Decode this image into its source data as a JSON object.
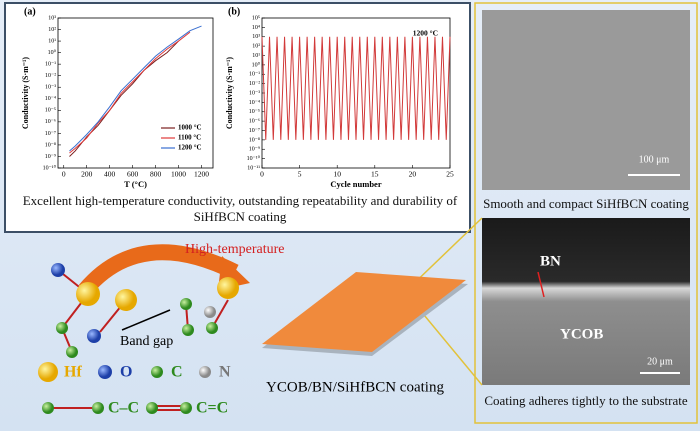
{
  "chart_data": [
    {
      "type": "line",
      "panel_label": "(a)",
      "xlabel": "T (°C)",
      "ylabel": "Conductivity (S·m⁻¹)",
      "log_y": true,
      "legend": "lower right",
      "xlim": [
        -50,
        1300
      ],
      "xticks": [
        0,
        200,
        400,
        600,
        800,
        1000,
        1200
      ],
      "ylim": [
        1e-10,
        1000.0
      ],
      "yticks": [
        {
          "value": 1e-10,
          "label": "10⁻¹⁰"
        },
        {
          "value": 1e-09,
          "label": "10⁻⁹"
        },
        {
          "value": 1e-08,
          "label": "10⁻⁸"
        },
        {
          "value": 1e-07,
          "label": "10⁻⁷"
        },
        {
          "value": 1e-06,
          "label": "10⁻⁶"
        },
        {
          "value": 1e-05,
          "label": "10⁻⁵"
        },
        {
          "value": 0.0001,
          "label": "10⁻⁴"
        },
        {
          "value": 0.001,
          "label": "10⁻³"
        },
        {
          "value": 0.01,
          "label": "10⁻²"
        },
        {
          "value": 0.1,
          "label": "10⁻¹"
        },
        {
          "value": 1,
          "label": "10⁰"
        },
        {
          "value": 10,
          "label": "10¹"
        },
        {
          "value": 100,
          "label": "10²"
        },
        {
          "value": 1000,
          "label": "10³"
        }
      ],
      "series": [
        {
          "name": "1000 °C",
          "color": "#7a1f1f",
          "x": [
            50,
            100,
            200,
            300,
            400,
            500,
            600,
            700,
            800,
            900,
            1000
          ],
          "values": [
            1e-09,
            3e-09,
            5e-08,
            5e-07,
            1e-05,
            0.0002,
            0.002,
            0.03,
            0.2,
            1,
            10
          ]
        },
        {
          "name": "1100 °C",
          "color": "#e03a3a",
          "x": [
            50,
            100,
            200,
            300,
            400,
            500,
            600,
            700,
            800,
            900,
            1000,
            1100
          ],
          "values": [
            2e-09,
            5e-09,
            4e-08,
            8e-07,
            1e-05,
            0.0003,
            0.003,
            0.03,
            0.3,
            2,
            10,
            60
          ]
        },
        {
          "name": "1200 °C",
          "color": "#3a6fd0",
          "x": [
            50,
            100,
            200,
            300,
            400,
            500,
            600,
            700,
            800,
            900,
            1000,
            1100,
            1200
          ],
          "values": [
            3e-09,
            8e-09,
            8e-08,
            1e-06,
            2e-05,
            0.0005,
            0.005,
            0.05,
            0.5,
            3,
            15,
            80,
            200
          ]
        }
      ]
    },
    {
      "type": "line",
      "panel_label": "(b)",
      "xlabel": "Cycle number",
      "ylabel": "Conductivity (S·m⁻¹)",
      "annotation": "1200 °C",
      "log_y": true,
      "xlim": [
        0,
        25
      ],
      "xticks": [
        0,
        5,
        10,
        15,
        20,
        25
      ],
      "ylim": [
        1e-11,
        100000.0
      ],
      "yticks": [
        {
          "value": 1e-11,
          "label": "10⁻¹¹"
        },
        {
          "value": 1e-10,
          "label": "10⁻¹⁰"
        },
        {
          "value": 1e-09,
          "label": "10⁻⁹"
        },
        {
          "value": 1e-08,
          "label": "10⁻⁸"
        },
        {
          "value": 1e-07,
          "label": "10⁻⁷"
        },
        {
          "value": 1e-06,
          "label": "10⁻⁶"
        },
        {
          "value": 1e-05,
          "label": "10⁻⁵"
        },
        {
          "value": 0.0001,
          "label": "10⁻⁴"
        },
        {
          "value": 0.001,
          "label": "10⁻³"
        },
        {
          "value": 0.01,
          "label": "10⁻²"
        },
        {
          "value": 0.1,
          "label": "10⁻¹"
        },
        {
          "value": 1,
          "label": "10⁰"
        },
        {
          "value": 10,
          "label": "10¹"
        },
        {
          "value": 100,
          "label": "10²"
        },
        {
          "value": 1000,
          "label": "10³"
        },
        {
          "value": 10000,
          "label": "10⁴"
        },
        {
          "value": 100000,
          "label": "10⁵"
        }
      ],
      "series": [
        {
          "color": "#d23a3a",
          "x": [
            0,
            0.5,
            1,
            1.5,
            2,
            2.5,
            3,
            3.5,
            4,
            4.5,
            5,
            5.5,
            6,
            6.5,
            7,
            7.5,
            8,
            8.5,
            9,
            9.5,
            10,
            10.5,
            11,
            11.5,
            12,
            12.5,
            13,
            13.5,
            14,
            14.5,
            15,
            15.5,
            16,
            16.5,
            17,
            17.5,
            18,
            18.5,
            19,
            19.5,
            20,
            20.5,
            21,
            21.5,
            22,
            22.5,
            23,
            23.5,
            24,
            24.5,
            25
          ],
          "values": [
            1000,
            1e-08,
            1000,
            1e-08,
            1000,
            1e-08,
            1000,
            1e-08,
            1000,
            1e-08,
            1000,
            1e-08,
            1000,
            1e-08,
            1000,
            1e-08,
            1000,
            1e-08,
            1000,
            1e-08,
            1000,
            1e-08,
            1000,
            1e-08,
            1000,
            1e-08,
            1000,
            1e-08,
            1000,
            1e-08,
            1000,
            1e-08,
            1000,
            1e-08,
            1000,
            1e-08,
            1000,
            1e-08,
            1000,
            1e-08,
            1000,
            1e-08,
            1000,
            1e-08,
            1000,
            1e-08,
            1000,
            1e-08,
            1000,
            1e-08,
            1000
          ]
        }
      ]
    }
  ],
  "summary": "Excellent high-temperature conductivity, outstanding repeatability and durability of SiHfBCN coating",
  "sem_top": {
    "scale_bar": "100 μm",
    "caption": "Smooth and compact SiHfBCN coating"
  },
  "sem_bottom": {
    "layer_labels": [
      "BN",
      "YCOB"
    ],
    "scale_bar": "20 μm",
    "caption": "Coating adheres tightly to the substrate"
  },
  "mechanism": {
    "arrow_label": "High-temperature",
    "band_gap": "Band gap",
    "legend": [
      "Hf",
      "O",
      "C",
      "N"
    ],
    "bonds": [
      "C–C",
      "C=C"
    ]
  },
  "coating_label": "YCOB/BN/SiHfBCN coating"
}
